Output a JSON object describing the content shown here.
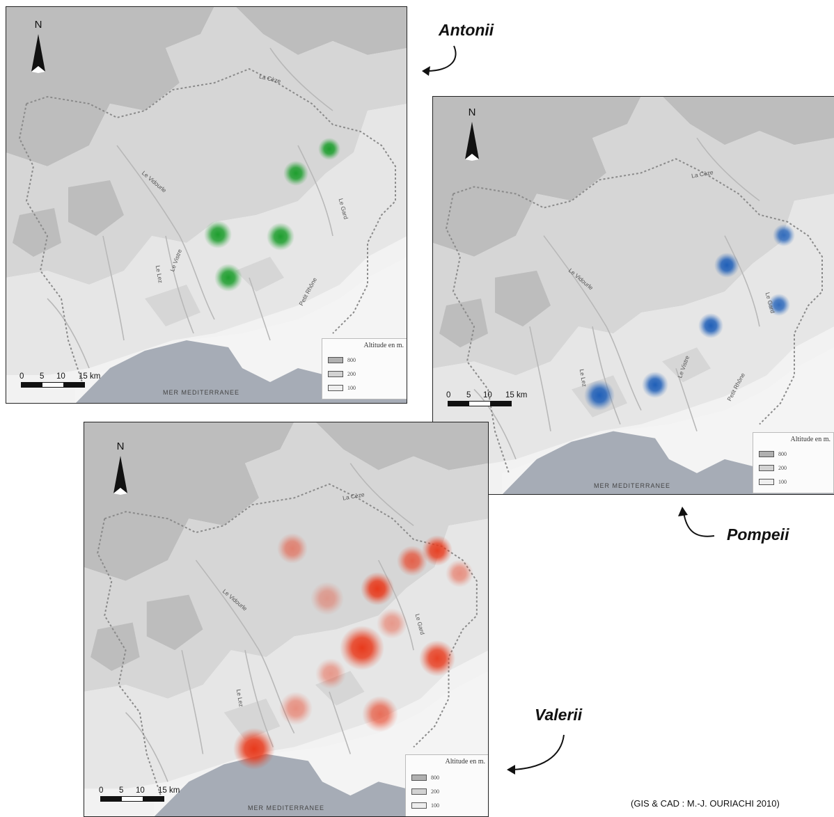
{
  "maps": [
    {
      "family": "Antonii",
      "color": "#1e9e2e",
      "north_label": "N",
      "scale": {
        "ticks": [
          "0",
          "5",
          "10",
          "15 km"
        ]
      },
      "legend": {
        "title": "Altitude en m.",
        "levels": [
          "800",
          "200",
          "100"
        ]
      },
      "sea_label": "MER MEDITERRANEE",
      "rivers": [
        "La Cèze",
        "Le Vidourle",
        "Le Gard",
        "Le Vistre",
        "Le Lez",
        "Petit Rhône"
      ]
    },
    {
      "family": "Pompeii",
      "color": "#1f5fb8",
      "north_label": "N",
      "scale": {
        "ticks": [
          "0",
          "5",
          "10",
          "15 km"
        ]
      },
      "legend": {
        "title": "Altitude en m.",
        "levels": [
          "800",
          "200",
          "100"
        ]
      },
      "sea_label": "MER MEDITERRANEE",
      "rivers": [
        "La Cèze",
        "Le Vidourle",
        "Le Gard",
        "Le Vistre",
        "Le Lez",
        "Petit Rhône"
      ]
    },
    {
      "family": "Valerii",
      "color": "#e83a1c",
      "north_label": "N",
      "scale": {
        "ticks": [
          "0",
          "5",
          "10",
          "15 km"
        ]
      },
      "legend": {
        "title": "Altitude en m.",
        "levels": [
          "800",
          "200",
          "100"
        ]
      },
      "sea_label": "MER MEDITERRANEE",
      "rivers": [
        "La Cèze",
        "Le Vidourle",
        "Le Gard",
        "Le Lez"
      ]
    }
  ],
  "credit": "(GIS & CAD : M.-J. OURIACHI 2010)",
  "colors": {
    "relief_800": "#bdbdbd",
    "relief_200": "#d6d6d6",
    "relief_100": "#e6e6e6",
    "plain": "#f4f4f4",
    "sea": "#a6acb6",
    "border": "#8a8a8a",
    "river": "#b8b8b8"
  }
}
